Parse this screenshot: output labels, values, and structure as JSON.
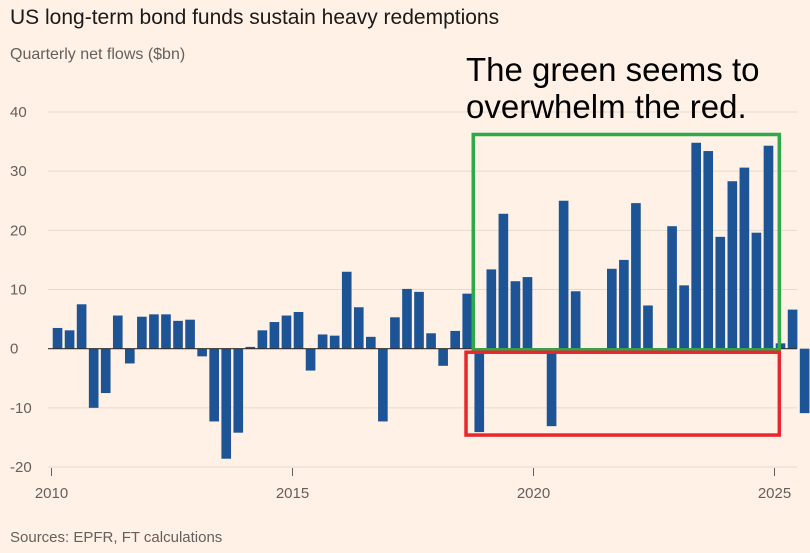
{
  "header": {
    "title": "US long-term bond funds sustain heavy redemptions",
    "subtitle": "Quarterly net flows ($bn)"
  },
  "annotation": {
    "line1": "The green seems to",
    "line2": "overwhelm the red."
  },
  "footer": {
    "source": "Sources: EPFR, FT calculations"
  },
  "colors": {
    "bar": "#1d5495",
    "grid": "#e6d9ce",
    "zero": "#33302e",
    "green_box": "#2eaa4a",
    "red_box": "#e8262b"
  },
  "chart_data": {
    "type": "bar",
    "title": "US long-term bond funds sustain heavy redemptions",
    "ylabel": "Quarterly net flows ($bn)",
    "xlabel": "",
    "ylim": [
      -20,
      40
    ],
    "yticks": [
      40,
      30,
      20,
      10,
      0,
      -10,
      -20
    ],
    "xticks": [
      "2010",
      "2015",
      "2020",
      "2025"
    ],
    "x_start": 2010,
    "periods_per_year": 4,
    "grid": true,
    "values": [
      3.5,
      3.1,
      7.5,
      -10.0,
      -7.5,
      5.6,
      -2.5,
      5.4,
      5.8,
      5.8,
      4.7,
      4.9,
      -1.3,
      -12.3,
      -18.6,
      -14.2,
      0.3,
      3.1,
      4.5,
      5.6,
      6.2,
      -3.7,
      2.4,
      2.2,
      13.0,
      7.0,
      2.0,
      -12.3,
      5.3,
      10.1,
      9.6,
      2.6,
      -2.9,
      3.0,
      9.3,
      -14.1,
      13.4,
      22.8,
      11.4,
      12.1,
      0.0,
      -13.1,
      25.0,
      9.7,
      0.0,
      -0.3,
      13.5,
      15.0,
      24.6,
      7.3,
      -0.4,
      20.7,
      10.7,
      34.8,
      33.4,
      18.9,
      28.3,
      30.6,
      19.6,
      34.3,
      0.9,
      6.6,
      -10.9
    ],
    "annotation_boxes": [
      {
        "name": "green",
        "x_from": 2018.75,
        "x_to": 2025.1,
        "y_from": -0.2,
        "y_to": 36.2
      },
      {
        "name": "red",
        "x_from": 2018.6,
        "x_to": 2025.1,
        "y_from": -0.6,
        "y_to": -14.6
      }
    ]
  }
}
